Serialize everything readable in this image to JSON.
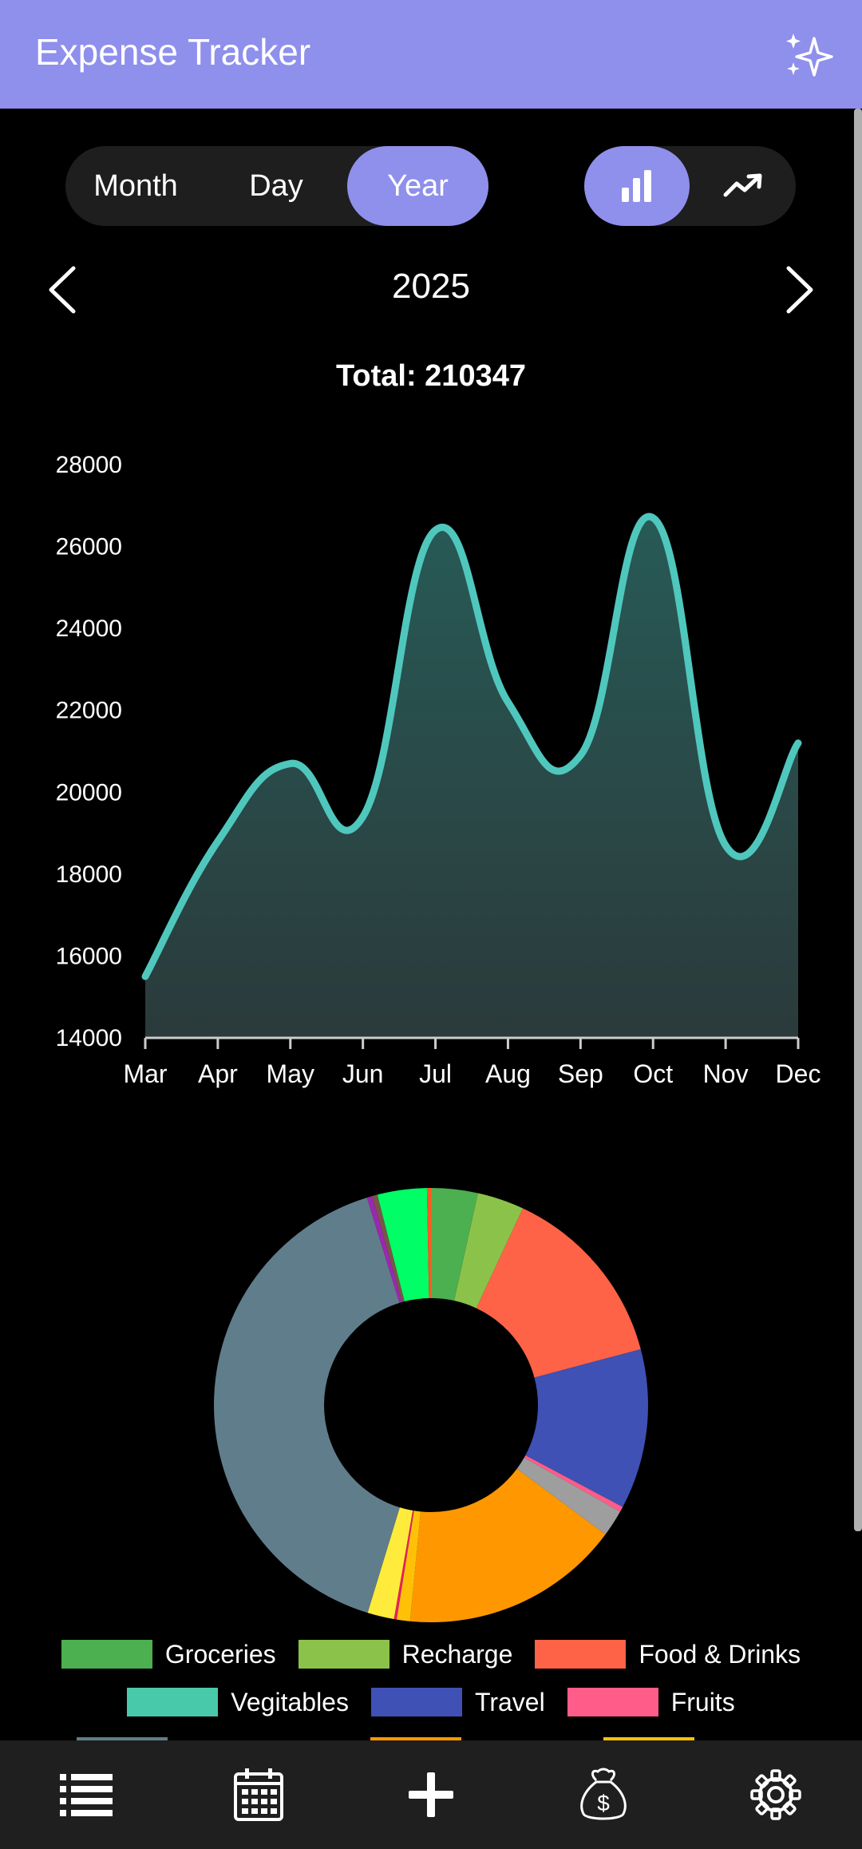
{
  "app": {
    "title": "Expense Tracker",
    "accent": "#8f8fec"
  },
  "period_tabs": [
    {
      "label": "Month",
      "active": false
    },
    {
      "label": "Day",
      "active": false
    },
    {
      "label": "Year",
      "active": true
    }
  ],
  "chart_toggle": [
    {
      "icon": "bar-chart-icon",
      "active": true
    },
    {
      "icon": "trending-up-icon",
      "active": false
    }
  ],
  "period": {
    "label": "2025",
    "prev_icon": "chevron-left-icon",
    "next_icon": "chevron-right-icon"
  },
  "summary": {
    "total": "Total: 210347"
  },
  "chart_data": [
    {
      "type": "area",
      "categories": [
        "Mar",
        "Apr",
        "May",
        "Jun",
        "Jul",
        "Aug",
        "Sep",
        "Oct",
        "Nov",
        "Dec"
      ],
      "values": [
        15500,
        18800,
        20700,
        19400,
        26400,
        22200,
        20900,
        26700,
        18700,
        21200
      ],
      "yticks": [
        "14000",
        "16000",
        "18000",
        "20000",
        "22000",
        "24000",
        "26000",
        "28000"
      ],
      "ylim": [
        14000,
        28000
      ],
      "line_color": "#4fc7bd",
      "grid": false
    },
    {
      "type": "pie",
      "donut": true,
      "slices": [
        {
          "label": "Groceries",
          "value": 3.5,
          "color": "#4caf50"
        },
        {
          "label": "Recharge",
          "value": 3.5,
          "color": "#8bc34a"
        },
        {
          "label": "Food & Drinks",
          "value": 14.0,
          "color": "#ff6347"
        },
        {
          "label": "Travel",
          "value": 12.0,
          "color": "#3f51b5"
        },
        {
          "label": "Fruits",
          "value": 0.4,
          "color": "#ff5c8a"
        },
        {
          "label": "",
          "value": 2.0,
          "color": "#9e9e9e"
        },
        {
          "label": "",
          "value": 16.5,
          "color": "#ff9800"
        },
        {
          "label": "",
          "value": 1.0,
          "color": "#ffc107"
        },
        {
          "label": "",
          "value": 0.2,
          "color": "#e91e63"
        },
        {
          "label": "",
          "value": 2.0,
          "color": "#ffeb3b"
        },
        {
          "label": "",
          "value": 40.8,
          "color": "#607d8b"
        },
        {
          "label": "",
          "value": 0.4,
          "color": "#9c27b0"
        },
        {
          "label": "",
          "value": 0.4,
          "color": "#795548"
        },
        {
          "label": "Vegitables",
          "value": 3.7,
          "color": "#00ff66"
        },
        {
          "label": "",
          "value": 0.3,
          "color": "#ff5722"
        }
      ]
    }
  ],
  "legend": [
    [
      {
        "label": "Groceries",
        "color": "#4caf50"
      },
      {
        "label": "Recharge",
        "color": "#8bc34a"
      },
      {
        "label": "Food & Drinks",
        "color": "#ff6347"
      }
    ],
    [
      {
        "label": "Vegitables",
        "color": "#48c9a9"
      },
      {
        "label": "Travel",
        "color": "#3f51b5"
      },
      {
        "label": "Fruits",
        "color": "#ff5c8a"
      }
    ]
  ],
  "legend_partial_colors": [
    "#607d8b",
    "#ff9800",
    "#ffc107"
  ],
  "bottom_nav": [
    {
      "icon": "list-icon"
    },
    {
      "icon": "calendar-icon"
    },
    {
      "icon": "add-icon"
    },
    {
      "icon": "money-bag-icon"
    },
    {
      "icon": "settings-icon"
    }
  ]
}
